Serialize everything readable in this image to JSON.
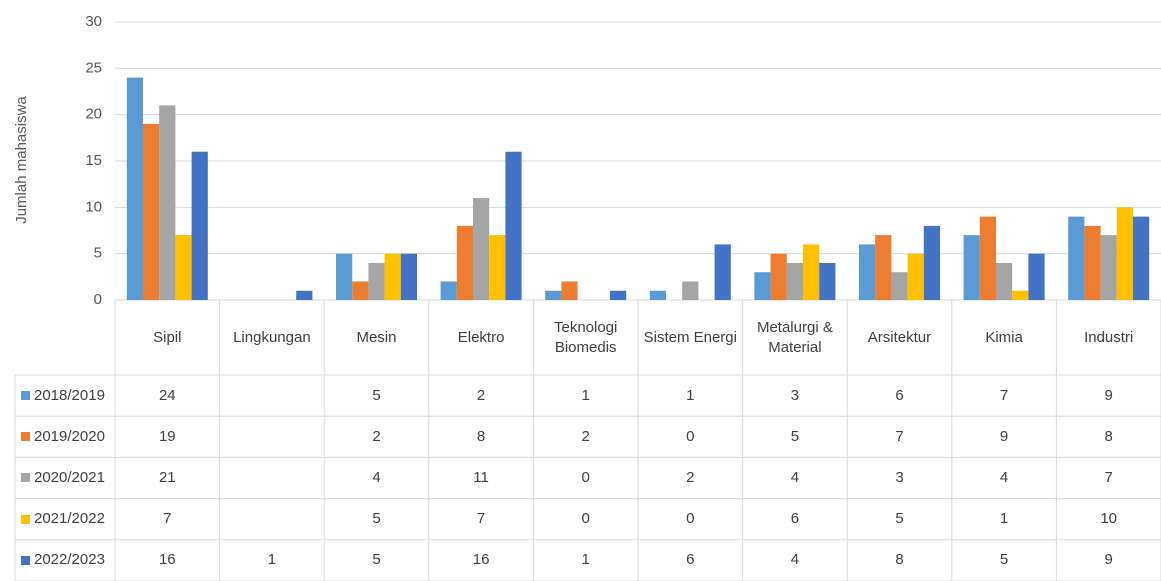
{
  "chart_data": {
    "type": "bar",
    "y_label": "Jumlah mahasiswa",
    "categories": [
      "Sipil",
      "Lingkungan",
      "Mesin",
      "Elektro",
      "Teknologi Biomedis",
      "Sistem Energi",
      "Metalurgi & Material",
      "Arsitektur",
      "Kimia",
      "Industri"
    ],
    "series": [
      {
        "name": "2018/2019",
        "color": "#5b9bd5",
        "values": [
          24,
          null,
          5,
          2,
          1,
          1,
          3,
          6,
          7,
          9
        ]
      },
      {
        "name": "2019/2020",
        "color": "#ed7d31",
        "values": [
          19,
          null,
          2,
          8,
          2,
          0,
          5,
          7,
          9,
          8
        ]
      },
      {
        "name": "2020/2021",
        "color": "#a5a5a5",
        "values": [
          21,
          null,
          4,
          11,
          0,
          2,
          4,
          3,
          4,
          7
        ]
      },
      {
        "name": "2021/2022",
        "color": "#ffc000",
        "values": [
          7,
          null,
          5,
          7,
          0,
          0,
          6,
          5,
          1,
          10
        ]
      },
      {
        "name": "2022/2023",
        "color": "#4472c4",
        "values": [
          16,
          1,
          5,
          16,
          1,
          6,
          4,
          8,
          5,
          9
        ]
      }
    ],
    "ylim": [
      0,
      30
    ],
    "yticks": [
      0,
      5,
      10,
      15,
      20,
      25,
      30
    ],
    "grid": true
  }
}
